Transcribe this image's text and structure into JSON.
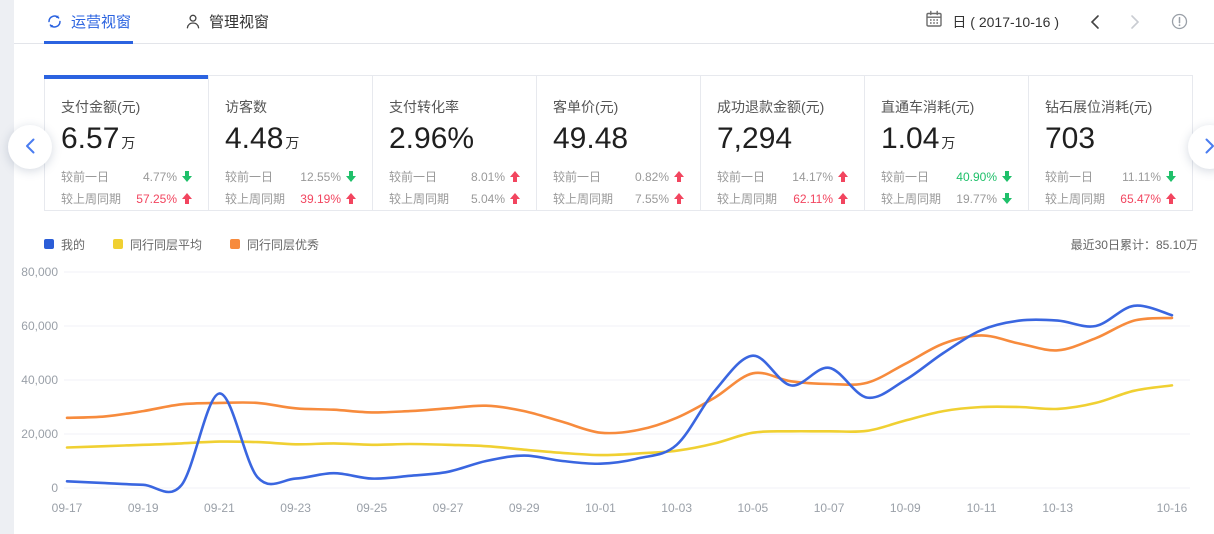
{
  "header": {
    "tabs": [
      {
        "label": "运营视窗",
        "icon": "sync-circle-icon",
        "active": true
      },
      {
        "label": "管理视窗",
        "icon": "user-icon",
        "active": false
      }
    ],
    "date_label": "日 ( 2017-10-16 )",
    "icons": [
      "calendar-icon",
      "chevron-left-icon",
      "chevron-right-icon",
      "info-icon"
    ]
  },
  "colors": {
    "accent_blue": "#2b63e0",
    "up_red": "#f2455f",
    "down_green": "#1fc06a",
    "muted_gray": "#999999"
  },
  "cards": [
    {
      "title": "支付金额(元)",
      "value": "6.57",
      "unit": "万",
      "active": true,
      "rows": [
        {
          "label": "较前一日",
          "value": "4.77%",
          "dir": "down",
          "value_color": "#999999"
        },
        {
          "label": "较上周同期",
          "value": "57.25%",
          "dir": "up",
          "value_color": "#f2455f"
        }
      ]
    },
    {
      "title": "访客数",
      "value": "4.48",
      "unit": "万",
      "active": false,
      "rows": [
        {
          "label": "较前一日",
          "value": "12.55%",
          "dir": "down",
          "value_color": "#999999"
        },
        {
          "label": "较上周同期",
          "value": "39.19%",
          "dir": "up",
          "value_color": "#f2455f"
        }
      ]
    },
    {
      "title": "支付转化率",
      "value": "2.96%",
      "unit": "",
      "active": false,
      "rows": [
        {
          "label": "较前一日",
          "value": "8.01%",
          "dir": "up",
          "value_color": "#999999"
        },
        {
          "label": "较上周同期",
          "value": "5.04%",
          "dir": "up",
          "value_color": "#999999"
        }
      ]
    },
    {
      "title": "客单价(元)",
      "value": "49.48",
      "unit": "",
      "active": false,
      "rows": [
        {
          "label": "较前一日",
          "value": "0.82%",
          "dir": "up",
          "value_color": "#999999"
        },
        {
          "label": "较上周同期",
          "value": "7.55%",
          "dir": "up",
          "value_color": "#999999"
        }
      ]
    },
    {
      "title": "成功退款金额(元)",
      "value": "7,294",
      "unit": "",
      "active": false,
      "rows": [
        {
          "label": "较前一日",
          "value": "14.17%",
          "dir": "up",
          "value_color": "#999999"
        },
        {
          "label": "较上周同期",
          "value": "62.11%",
          "dir": "up",
          "value_color": "#f2455f"
        }
      ]
    },
    {
      "title": "直通车消耗(元)",
      "value": "1.04",
      "unit": "万",
      "active": false,
      "rows": [
        {
          "label": "较前一日",
          "value": "40.90%",
          "dir": "down",
          "value_color": "#1fc06a"
        },
        {
          "label": "较上周同期",
          "value": "19.77%",
          "dir": "down",
          "value_color": "#999999"
        }
      ]
    },
    {
      "title": "钻石展位消耗(元)",
      "value": "703",
      "unit": "",
      "active": false,
      "rows": [
        {
          "label": "较前一日",
          "value": "11.11%",
          "dir": "down",
          "value_color": "#999999"
        },
        {
          "label": "较上周同期",
          "value": "65.47%",
          "dir": "up",
          "value_color": "#f2455f"
        }
      ]
    }
  ],
  "legend": [
    {
      "label": "我的",
      "color": "#2b5dd7"
    },
    {
      "label": "同行同层平均",
      "color": "#f0d032"
    },
    {
      "label": "同行同层优秀",
      "color": "#f78b3d"
    }
  ],
  "summary": "最近30日累计：85.10万",
  "chart_data": {
    "type": "line",
    "x": [
      "09-17",
      "09-18",
      "09-19",
      "09-20",
      "09-21",
      "09-22",
      "09-23",
      "09-24",
      "09-25",
      "09-26",
      "09-27",
      "09-28",
      "09-29",
      "09-30",
      "10-01",
      "10-02",
      "10-03",
      "10-04",
      "10-05",
      "10-06",
      "10-07",
      "10-08",
      "10-09",
      "10-10",
      "10-11",
      "10-12",
      "10-13",
      "10-14",
      "10-15",
      "10-16"
    ],
    "x_tick_labels": [
      "09-17",
      "09-19",
      "09-21",
      "09-23",
      "09-25",
      "09-27",
      "09-29",
      "10-01",
      "10-03",
      "10-05",
      "10-07",
      "10-09",
      "10-11",
      "10-13",
      "10-16"
    ],
    "series": [
      {
        "name": "我的",
        "color": "#3a66e0",
        "values": [
          2500,
          1800,
          1200,
          1000,
          35000,
          4000,
          3500,
          5500,
          3500,
          4500,
          6000,
          10000,
          12000,
          10000,
          9000,
          11000,
          16000,
          36000,
          49000,
          38000,
          44500,
          33500,
          40000,
          50000,
          58500,
          62000,
          62000,
          60000,
          67500,
          64000
        ]
      },
      {
        "name": "同行同层平均",
        "color": "#f0d032",
        "values": [
          15000,
          15500,
          16000,
          16500,
          17200,
          17000,
          16200,
          16500,
          16000,
          16300,
          16000,
          15500,
          14200,
          13000,
          12200,
          12800,
          13800,
          16500,
          20500,
          21000,
          21000,
          21200,
          25000,
          28500,
          30000,
          30000,
          29300,
          31500,
          36000,
          38000
        ]
      },
      {
        "name": "同行同层优秀",
        "color": "#f78b3d",
        "values": [
          26000,
          26500,
          28500,
          31000,
          31500,
          31500,
          29500,
          29000,
          28000,
          28500,
          29500,
          30500,
          28500,
          24500,
          20500,
          21500,
          26000,
          33500,
          42500,
          39500,
          38500,
          39000,
          46000,
          53500,
          56500,
          53500,
          51000,
          55500,
          62000,
          63000
        ]
      }
    ],
    "ylim": [
      0,
      80000
    ],
    "y_ticks": [
      0,
      20000,
      40000,
      60000,
      80000
    ],
    "grid": true,
    "legend_position": "top-left",
    "title": "",
    "xlabel": "",
    "ylabel": ""
  }
}
